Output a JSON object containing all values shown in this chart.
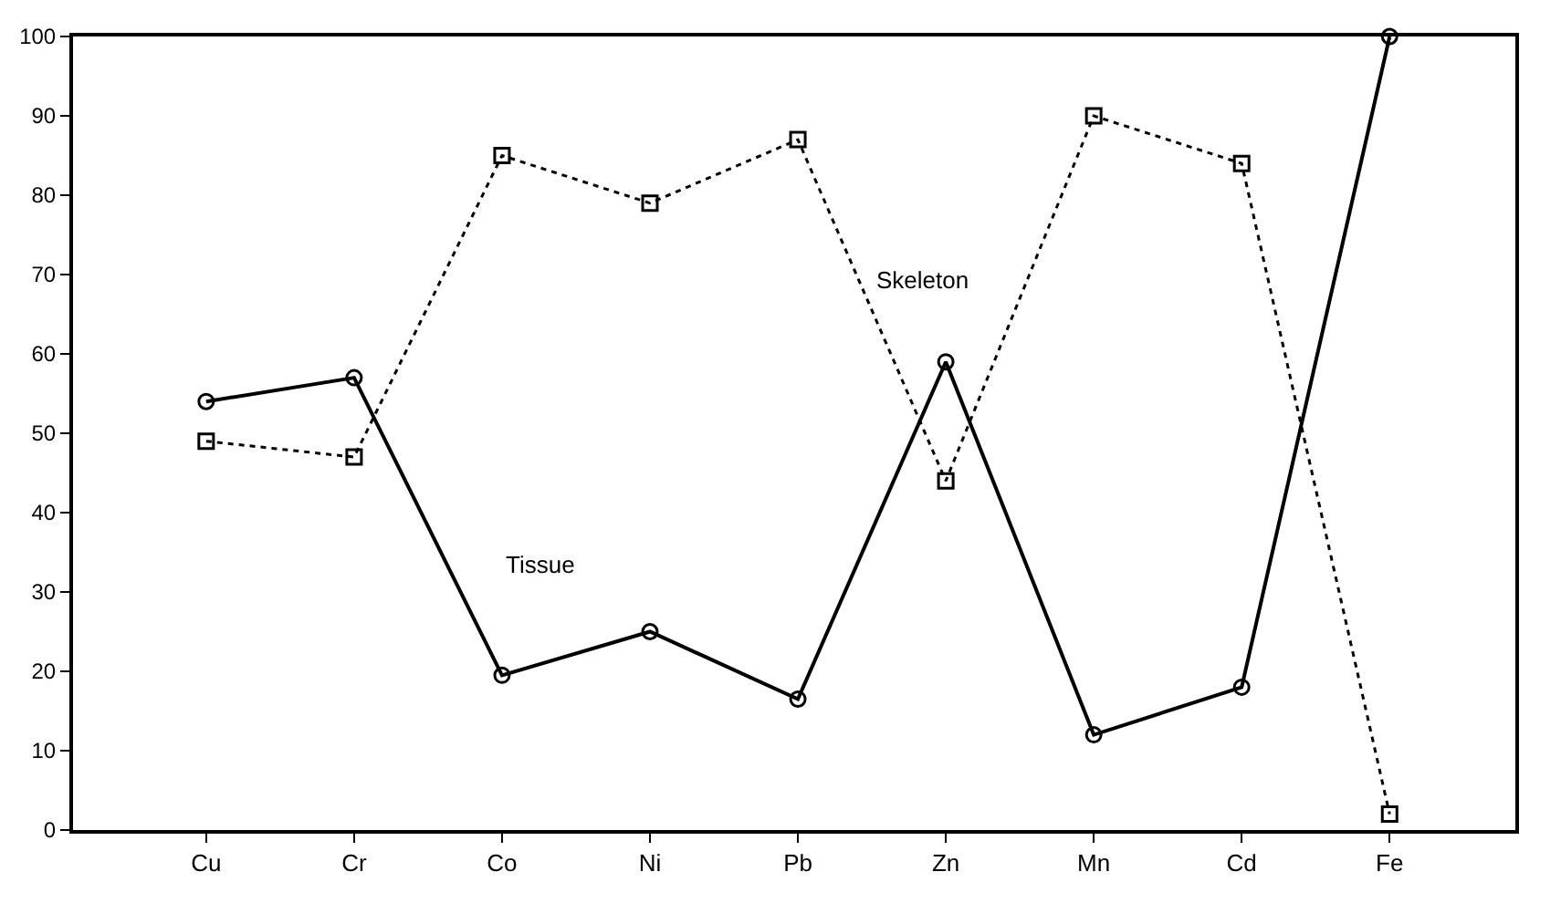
{
  "chart_data": {
    "type": "line",
    "categories": [
      "Cu",
      "Cr",
      "Co",
      "Ni",
      "Pb",
      "Zn",
      "Mn",
      "Cd",
      "Fe"
    ],
    "series": [
      {
        "name": "Tissue",
        "color": "#000000",
        "marker": "circle",
        "line_style": "solid",
        "values": [
          54,
          57,
          19.5,
          25,
          16.5,
          59,
          12,
          18,
          100
        ]
      },
      {
        "name": "Skeleton",
        "color": "#000000",
        "marker": "square",
        "line_style": "dotted",
        "values": [
          49,
          47,
          85,
          79,
          87,
          44,
          90,
          84,
          2
        ]
      }
    ],
    "ylim": [
      0,
      100
    ],
    "yticks": [
      0,
      10,
      20,
      30,
      40,
      50,
      60,
      70,
      80,
      90,
      100
    ],
    "legend": false
  }
}
